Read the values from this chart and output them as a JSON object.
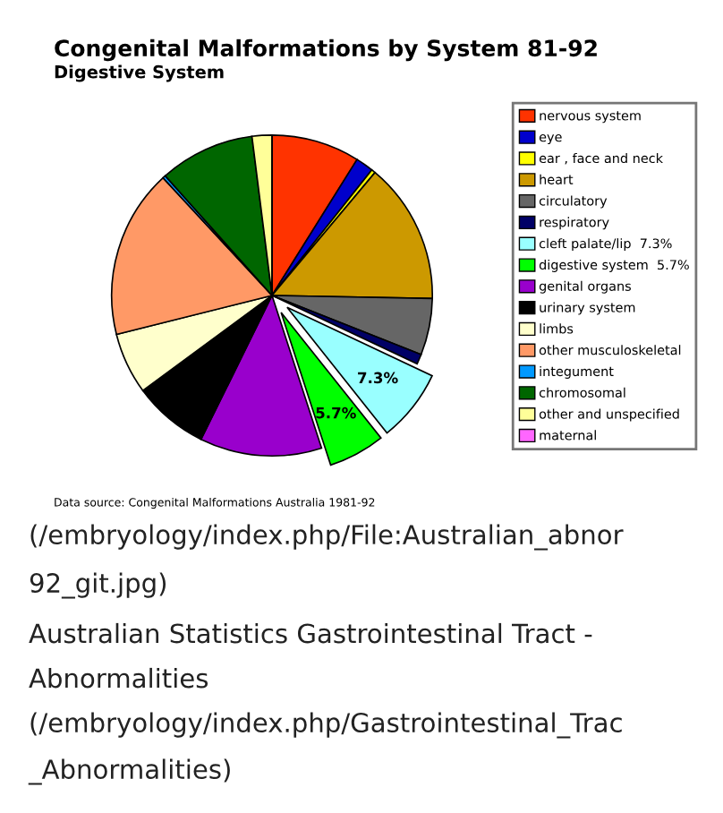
{
  "chart_data": {
    "type": "pie",
    "title": "Congenital Malformations by System 81-92",
    "subtitle": "Digestive System",
    "categories": [
      "nervous system",
      "eye",
      "ear , face and neck",
      "heart",
      "circulatory",
      "respiratory",
      "cleft palate/lip  7.3%",
      "digestive system  5.7%",
      "genital organs",
      "urinary system",
      "limbs",
      "other musculoskeletal",
      "integument",
      "chromosomal",
      "other and unspecified",
      "maternal"
    ],
    "values": [
      8.9,
      1.8,
      0.4,
      14.2,
      5.7,
      1.0,
      7.3,
      5.7,
      12.3,
      7.6,
      6.2,
      17.0,
      0.3,
      9.6,
      2.0,
      0
    ],
    "colors": [
      "#ff3300",
      "#0000cc",
      "#ffff00",
      "#cc9900",
      "#666666",
      "#000066",
      "#99ffff",
      "#00ff00",
      "#9900cc",
      "#000000",
      "#ffffcc",
      "#ff9966",
      "#0099ff",
      "#006600",
      "#ffff99",
      "#ff66ff"
    ],
    "value_labels": [
      null,
      null,
      null,
      null,
      null,
      null,
      "7.3%",
      "5.7%",
      null,
      null,
      null,
      null,
      null,
      null,
      null,
      null
    ],
    "legend": "right",
    "annotations": [
      "Data source: Congenital Malformations Australia 1981-92",
      "(/embryology/index.php/File:Australian_abnor",
      "92_git.jpg)",
      "Australian Statistics Gastrointestinal Tract -",
      "Abnormalities",
      "(/embryology/index.php/Gastrointestinal_Trac",
      "_Abnormalities)"
    ]
  }
}
